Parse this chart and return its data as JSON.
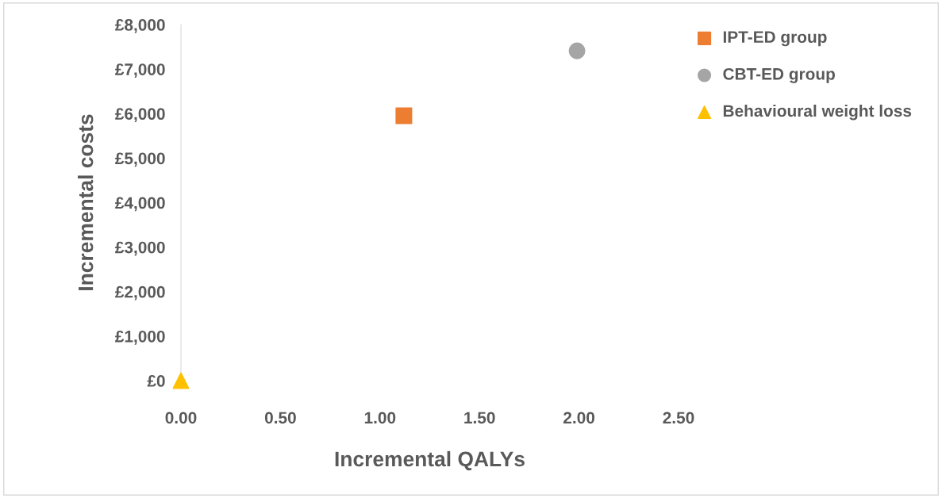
{
  "chart_data": {
    "type": "scatter",
    "xlabel": "Incremental QALYs",
    "ylabel": "Incremental costs",
    "xlim": [
      0,
      2.5
    ],
    "xticks": [
      {
        "value": 0,
        "label": "0.00"
      },
      {
        "value": 0.5,
        "label": "0.50"
      },
      {
        "value": 1,
        "label": "1.00"
      },
      {
        "value": 1.5,
        "label": "1.50"
      },
      {
        "value": 2,
        "label": "2.00"
      },
      {
        "value": 2.5,
        "label": "2.50"
      }
    ],
    "ylim": [
      0,
      8000
    ],
    "yticks": [
      {
        "value": 0,
        "label": "£0"
      },
      {
        "value": 1000,
        "label": "£1,000"
      },
      {
        "value": 2000,
        "label": "£2,000"
      },
      {
        "value": 3000,
        "label": "£3,000"
      },
      {
        "value": 4000,
        "label": "£4,000"
      },
      {
        "value": 5000,
        "label": "£5,000"
      },
      {
        "value": 6000,
        "label": "£6,000"
      },
      {
        "value": 7000,
        "label": "£7,000"
      },
      {
        "value": 8000,
        "label": "£8,000"
      }
    ],
    "grid": false,
    "legend": "right",
    "series": [
      {
        "name": "IPT-ED group",
        "color": "#ed7d31",
        "marker": "square",
        "x": [
          1.12
        ],
        "values": [
          5950
        ]
      },
      {
        "name": "CBT-ED group",
        "color": "#a5a5a5",
        "marker": "circle",
        "x": [
          1.99
        ],
        "values": [
          7410
        ]
      },
      {
        "name": "Behavioural weight loss",
        "color": "#ffc000",
        "marker": "triangle",
        "x": [
          0
        ],
        "values": [
          0
        ]
      }
    ]
  }
}
